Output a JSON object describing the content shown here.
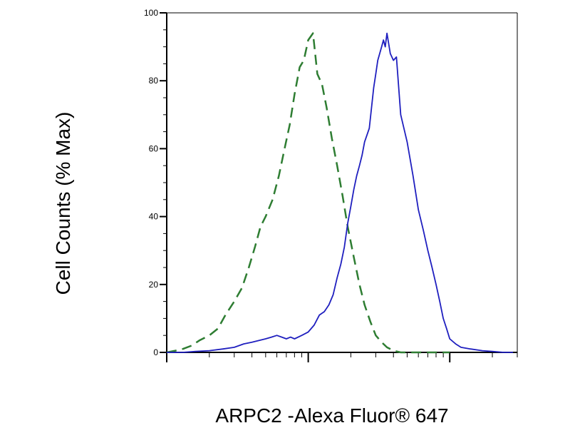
{
  "chart_data": {
    "type": "line",
    "title": "",
    "xlabel": "ARPC2 -Alexa Fluor® 647",
    "ylabel": "Cell Counts (% Max)",
    "x_scale": "log",
    "xlim": [
      1,
      300
    ],
    "ylim": [
      0,
      100
    ],
    "y_ticks": [
      "0",
      "20",
      "40",
      "60",
      "80",
      "100"
    ],
    "grid": false,
    "legend": "none",
    "series": [
      {
        "color": "#2e7d32",
        "style": "dashed",
        "x": [
          1.0,
          1.15,
          1.3,
          1.5,
          1.7,
          2.0,
          2.3,
          2.6,
          3.0,
          3.4,
          3.8,
          4.2,
          4.6,
          5.0,
          5.6,
          6.2,
          6.8,
          7.4,
          8.0,
          8.7,
          9.3,
          10.0,
          10.8,
          11.6,
          12.5,
          13.5,
          14.7,
          16.0,
          17.5,
          19.0,
          21.0,
          23.0,
          25.0,
          27.5,
          30.0,
          33.0,
          36.0,
          40.0,
          45.0,
          50.0,
          56.0,
          62.0,
          70.0,
          80.0,
          90.0,
          100.0
        ],
        "y": [
          0,
          0.5,
          1,
          2,
          3.5,
          5,
          7,
          11,
          15,
          19,
          25,
          31,
          37,
          40,
          45,
          52,
          60,
          67,
          76,
          84,
          86,
          92,
          94,
          82,
          79,
          72,
          63,
          55,
          46,
          37,
          28,
          20,
          14,
          9,
          5,
          3,
          1.5,
          0.5,
          0,
          0,
          0,
          0,
          0,
          0,
          0,
          0
        ]
      },
      {
        "color": "#1f1fbf",
        "style": "solid",
        "x": [
          1.0,
          1.3,
          1.6,
          2.0,
          2.5,
          3.0,
          3.5,
          4.0,
          4.5,
          5.0,
          5.5,
          6.0,
          6.5,
          7.0,
          7.5,
          8.0,
          9.0,
          10.0,
          11.0,
          12.0,
          13.0,
          14.0,
          15.0,
          16.0,
          17.0,
          18.0,
          19.0,
          20.0,
          21.0,
          22.0,
          23.0,
          24.0,
          25.0,
          26.0,
          27.0,
          28.0,
          29.0,
          30.0,
          31.0,
          32.0,
          33.0,
          34.0,
          35.0,
          36.0,
          38.0,
          40.0,
          42.0,
          45.0,
          50.0,
          55.0,
          60.0,
          65.0,
          70.0,
          75.0,
          80.0,
          85.0,
          90.0,
          95.0,
          100.0,
          110.0,
          120.0,
          140.0,
          170.0,
          200.0,
          240.0,
          280.0
        ],
        "y": [
          0,
          0,
          0.3,
          0.5,
          1,
          1.5,
          2.5,
          3,
          3.5,
          4,
          4.5,
          5,
          4.5,
          4,
          4.5,
          4,
          5,
          6,
          8,
          11,
          12,
          14,
          17,
          22,
          26,
          31,
          38,
          43,
          48,
          52,
          55,
          58,
          62,
          64,
          66,
          72,
          78,
          82,
          86,
          88,
          90,
          92,
          90,
          94,
          88,
          86,
          87,
          70,
          62,
          52,
          42,
          36,
          30,
          25,
          20,
          15,
          10,
          7,
          4,
          2.5,
          1.5,
          1,
          0.5,
          0.3,
          0,
          0
        ]
      }
    ]
  }
}
